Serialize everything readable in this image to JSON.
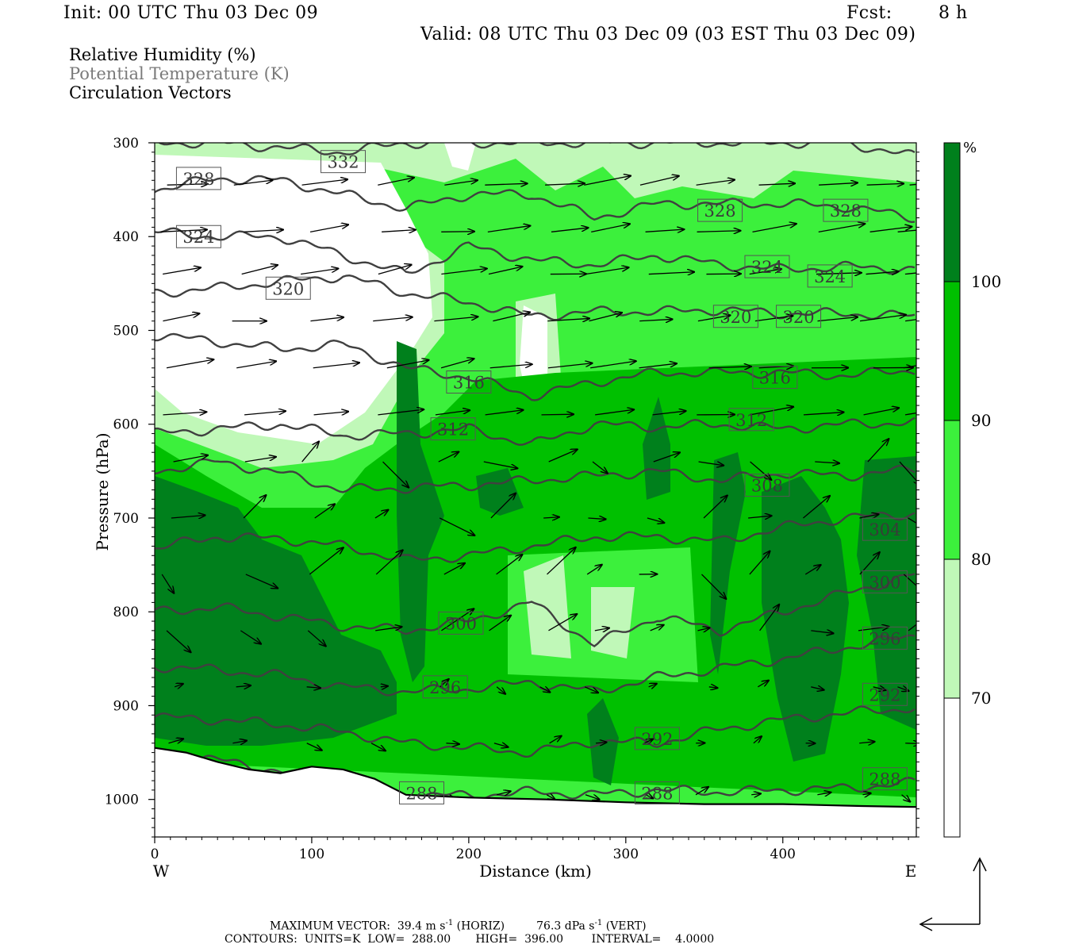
{
  "header": {
    "init": "Init: 00 UTC Thu 03 Dec 09",
    "fcst_label": "Fcst:",
    "fcst_value": "8 h",
    "valid": "Valid: 08 UTC Thu 03 Dec 09 (03 EST Thu 03 Dec 09)"
  },
  "legend": {
    "line1": "Relative Humidity (%)",
    "line2": "Potential Temperature (K)",
    "line3": "Circulation Vectors"
  },
  "footer": {
    "max_vector_label": "MAXIMUM VECTOR:",
    "horiz_value": "39.4 m s",
    "horiz_exp": "-1",
    "horiz_tag": "(HORIZ)",
    "vert_value": "76.3 dPa s",
    "vert_exp": "-1",
    "vert_tag": "(VERT)",
    "contours_line": "CONTOURS:  UNITS=K  LOW=  288.00       HIGH=  396.00        INTERVAL=    4.0000"
  },
  "colors": {
    "rh_70_80": "#c0f8b8",
    "rh_80_90": "#3cf03c",
    "rh_90_100": "#00c000",
    "rh_100": "#00801c",
    "theta_line": "#404040",
    "ground": "#000000"
  },
  "chart_data": {
    "type": "heatmap",
    "xlabel": "Distance (km)",
    "ylabel": "Pressure (hPa)",
    "xlim": [
      0,
      485
    ],
    "ylim": [
      1040,
      300
    ],
    "x_ticks": [
      0,
      100,
      200,
      300,
      400
    ],
    "y_ticks": [
      300,
      400,
      500,
      600,
      700,
      800,
      900,
      1000
    ],
    "x_end_labels": {
      "left": "W",
      "right": "E"
    },
    "colorbar": {
      "unit": "%",
      "levels": [
        70,
        80,
        90,
        100
      ],
      "colors": [
        "#ffffff",
        "#c0f8b8",
        "#3cf03c",
        "#00c000",
        "#00801c"
      ]
    },
    "theta_contours": [
      {
        "value": 288,
        "x": [
          0,
          40,
          80,
          120,
          160,
          200,
          240,
          280,
          320,
          360,
          400,
          440,
          485
        ],
        "p": [
          950,
          958,
          970,
          985,
          995,
          996,
          992,
          995,
          990,
          992,
          990,
          988,
          982
        ],
        "label_positions": [
          [
            170,
            993
          ],
          [
            320,
            993
          ],
          [
            465,
            978
          ]
        ]
      },
      {
        "value": 292,
        "x": [
          0,
          40,
          80,
          120,
          160,
          200,
          240,
          280,
          320,
          360,
          400,
          440,
          485
        ],
        "p": [
          912,
          915,
          920,
          928,
          940,
          945,
          950,
          938,
          940,
          925,
          915,
          908,
          902
        ],
        "label_positions": [
          [
            320,
            935
          ],
          [
            465,
            888
          ]
        ]
      },
      {
        "value": 296,
        "x": [
          0,
          40,
          80,
          120,
          160,
          200,
          240,
          280,
          320,
          360,
          400,
          440,
          485
        ],
        "p": [
          858,
          862,
          868,
          880,
          885,
          882,
          875,
          885,
          870,
          860,
          850,
          838,
          825
        ],
        "label_positions": [
          [
            185,
            880
          ],
          [
            465,
            828
          ]
        ]
      },
      {
        "value": 300,
        "x": [
          0,
          40,
          80,
          120,
          160,
          200,
          240,
          280,
          320,
          360,
          400,
          440,
          485
        ],
        "p": [
          800,
          795,
          805,
          815,
          820,
          810,
          790,
          835,
          805,
          820,
          800,
          780,
          760
        ],
        "label_positions": [
          [
            195,
            812
          ],
          [
            465,
            768
          ]
        ]
      },
      {
        "value": 304,
        "x": [
          0,
          40,
          80,
          120,
          160,
          200,
          240,
          280,
          320,
          360,
          400,
          440,
          485
        ],
        "p": [
          732,
          720,
          722,
          730,
          745,
          740,
          730,
          720,
          720,
          725,
          710,
          700,
          695
        ],
        "label_positions": [
          [
            465,
            712
          ]
        ]
      },
      {
        "value": 308,
        "x": [
          0,
          40,
          80,
          120,
          160,
          200,
          240,
          280,
          320,
          360,
          400,
          440,
          485
        ],
        "p": [
          650,
          640,
          652,
          670,
          668,
          665,
          660,
          655,
          650,
          660,
          652,
          655,
          648
        ],
        "label_positions": [
          [
            390,
            665
          ]
        ]
      },
      {
        "value": 312,
        "x": [
          0,
          40,
          80,
          120,
          160,
          200,
          240,
          280,
          320,
          360,
          400,
          440,
          485
        ],
        "p": [
          610,
          605,
          600,
          612,
          610,
          605,
          622,
          600,
          603,
          600,
          605,
          600,
          598
        ],
        "label_positions": [
          [
            190,
            605
          ],
          [
            380,
            595
          ]
        ]
      },
      {
        "value": 316,
        "x": [
          0,
          40,
          80,
          120,
          160,
          200,
          240,
          280,
          320,
          360,
          400,
          440,
          485
        ],
        "p": [
          505,
          512,
          520,
          515,
          540,
          550,
          570,
          555,
          545,
          545,
          545,
          548,
          542
        ],
        "label_positions": [
          [
            200,
            555
          ],
          [
            395,
            550
          ]
        ]
      },
      {
        "value": 320,
        "x": [
          0,
          40,
          80,
          120,
          160,
          200,
          240,
          280,
          320,
          360,
          400,
          440,
          485
        ],
        "p": [
          460,
          455,
          448,
          442,
          460,
          470,
          485,
          480,
          480,
          478,
          482,
          482,
          485
        ],
        "label_positions": [
          [
            85,
            455
          ],
          [
            370,
            485
          ],
          [
            410,
            485
          ]
        ]
      },
      {
        "value": 324,
        "x": [
          0,
          40,
          80,
          120,
          160,
          200,
          240,
          280,
          320,
          360,
          400,
          440,
          485
        ],
        "p": [
          395,
          400,
          400,
          420,
          440,
          410,
          425,
          430,
          420,
          430,
          435,
          432,
          435
        ],
        "label_positions": [
          [
            28,
            400
          ],
          [
            390,
            432
          ],
          [
            430,
            442
          ]
        ]
      },
      {
        "value": 328,
        "x": [
          0,
          40,
          80,
          120,
          160,
          200,
          240,
          280,
          320,
          360,
          400,
          440,
          485
        ],
        "p": [
          350,
          338,
          340,
          355,
          370,
          355,
          355,
          380,
          365,
          365,
          365,
          368,
          380
        ],
        "label_positions": [
          [
            28,
            338
          ],
          [
            360,
            372
          ],
          [
            440,
            372
          ]
        ]
      },
      {
        "value": 332,
        "x": [
          0,
          40,
          80,
          120,
          160,
          200,
          240,
          280,
          320,
          360,
          400,
          440,
          485
        ],
        "p": [
          300,
          300,
          305,
          310,
          300,
          300,
          300,
          300,
          300,
          300,
          300,
          300,
          315
        ],
        "label_positions": [
          [
            120,
            320
          ]
        ]
      }
    ],
    "ground_surface": {
      "x": [
        0,
        20,
        40,
        60,
        80,
        100,
        120,
        140,
        160,
        200,
        250,
        300,
        350,
        400,
        450,
        485
      ],
      "p": [
        945,
        950,
        960,
        968,
        972,
        965,
        968,
        978,
        995,
        998,
        1000,
        1003,
        1005,
        1005,
        1007,
        1008
      ]
    },
    "max_vector": {
      "horiz": "39.4 m s-1",
      "vert": "76.3 dPa s-1"
    },
    "contours_info": {
      "units": "K",
      "low": 288.0,
      "high": 396.0,
      "interval": 4.0
    }
  }
}
